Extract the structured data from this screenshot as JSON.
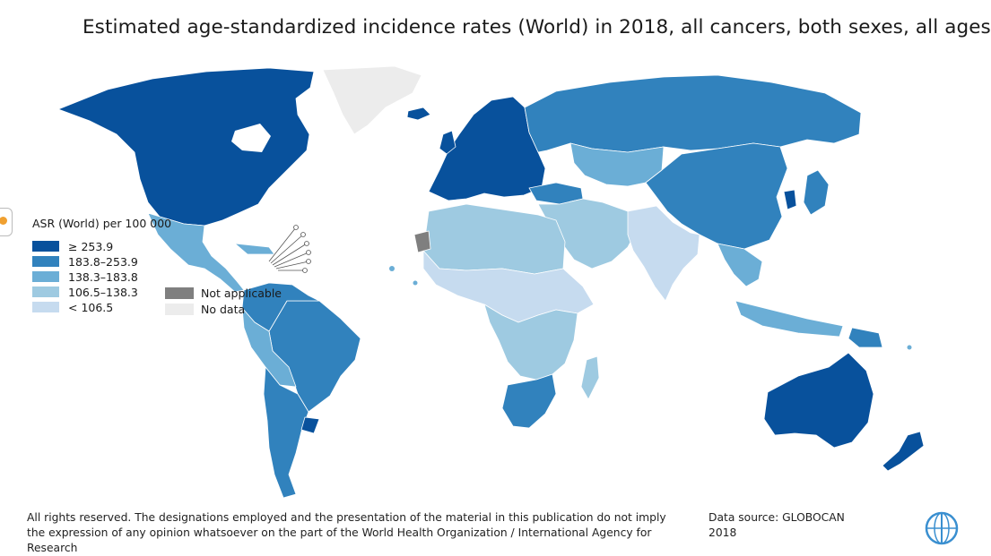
{
  "title": "Estimated age-standardized incidence rates (World) in 2018, all cancers, both sexes, all ages",
  "legend": {
    "title": "ASR (World) per 100 000",
    "classes": [
      {
        "label": "≥ 253.9",
        "color": "#08519c"
      },
      {
        "label": "183.8–253.9",
        "color": "#3182bd"
      },
      {
        "label": "138.3–183.8",
        "color": "#6baed6"
      },
      {
        "label": "106.5–138.3",
        "color": "#9ecae1"
      },
      {
        "label": "< 106.5",
        "color": "#c6dbef"
      }
    ],
    "not_applicable": {
      "label": "Not applicable",
      "color": "#7f7f7f"
    },
    "no_data": {
      "label": "No data",
      "color": "#ececec"
    }
  },
  "footer": {
    "disclaimer": "All rights reserved. The designations employed and the presentation of the material in this publication do not imply the expression of any opinion whatsoever on the part of the World Health Organization / International Agency for Research",
    "source_line1": "Data source: GLOBOCAN",
    "source_line2": "2018"
  },
  "colors": {
    "c1": "#08519c",
    "c2": "#3182bd",
    "c3": "#6baed6",
    "c4": "#9ecae1",
    "c5": "#c6dbef",
    "na": "#7f7f7f",
    "nodata": "#ececec"
  }
}
